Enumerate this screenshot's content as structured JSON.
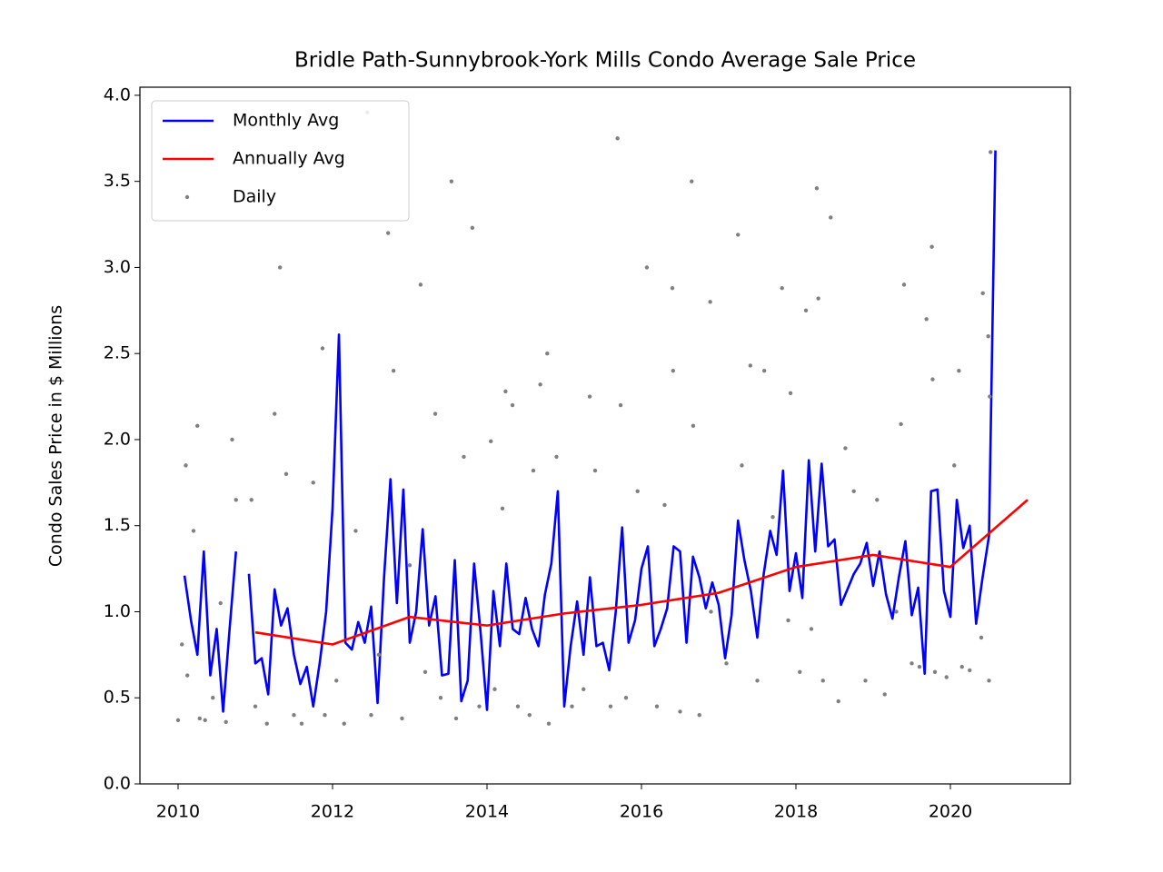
{
  "chart_data": {
    "type": "line",
    "title": "Bridle Path-Sunnybrook-York Mills Condo Average Sale Price",
    "y_label": "Condo Sales Price in $ Millions",
    "xlim": [
      2009.506,
      2021.553
    ],
    "ylim": [
      0,
      4.047
    ],
    "xticks": [
      2010,
      2012,
      2014,
      2016,
      2018,
      2020
    ],
    "yticks": [
      {
        "value": 0,
        "label": "0.0"
      },
      0.5,
      {
        "value": 1,
        "label": "1.0"
      },
      1.5,
      {
        "value": 2,
        "label": "2.0"
      },
      2.5,
      {
        "value": 3,
        "label": "3.0"
      },
      3.5,
      {
        "value": 4,
        "label": "4.0"
      }
    ],
    "legend": "upper left",
    "series": [
      {
        "name": "Monthly Avg",
        "color": "#0000ff",
        "x": [
          2010.083,
          2010.167,
          2010.25,
          2010.333,
          2010.417,
          2010.5,
          2010.583,
          2010.667,
          2010.75,
          2010.833,
          2010.917,
          2011,
          2011.083,
          2011.167,
          2011.25,
          2011.333,
          2011.417,
          2011.5,
          2011.583,
          2011.667,
          2011.75,
          2011.833,
          2011.917,
          2012,
          2012.083,
          2012.167,
          2012.25,
          2012.333,
          2012.417,
          2012.5,
          2012.583,
          2012.667,
          2012.75,
          2012.833,
          2012.917,
          2013,
          2013.083,
          2013.167,
          2013.25,
          2013.333,
          2013.417,
          2013.5,
          2013.583,
          2013.667,
          2013.75,
          2013.833,
          2013.917,
          2014,
          2014.083,
          2014.167,
          2014.25,
          2014.333,
          2014.417,
          2014.5,
          2014.583,
          2014.667,
          2014.75,
          2014.833,
          2014.917,
          2015,
          2015.083,
          2015.167,
          2015.25,
          2015.333,
          2015.417,
          2015.5,
          2015.583,
          2015.667,
          2015.75,
          2015.833,
          2015.917,
          2016,
          2016.083,
          2016.167,
          2016.25,
          2016.333,
          2016.417,
          2016.5,
          2016.583,
          2016.667,
          2016.75,
          2016.833,
          2016.917,
          2017,
          2017.083,
          2017.167,
          2017.25,
          2017.333,
          2017.417,
          2017.5,
          2017.583,
          2017.667,
          2017.75,
          2017.833,
          2017.917,
          2018,
          2018.083,
          2018.167,
          2018.25,
          2018.333,
          2018.417,
          2018.5,
          2018.583,
          2018.667,
          2018.75,
          2018.833,
          2018.917,
          2019,
          2019.083,
          2019.167,
          2019.25,
          2019.333,
          2019.417,
          2019.5,
          2019.583,
          2019.667,
          2019.75,
          2019.833,
          2019.917,
          2020,
          2020.083,
          2020.167,
          2020.25,
          2020.333,
          2020.417,
          2020.5,
          2020.583
        ],
        "values": [
          1.21,
          0.95,
          0.75,
          1.35,
          0.63,
          0.9,
          0.42,
          0.9,
          1.35,
          null,
          1.22,
          0.7,
          0.73,
          0.52,
          1.13,
          0.92,
          1.02,
          0.75,
          0.58,
          0.68,
          0.45,
          0.7,
          1.0,
          1.6,
          2.61,
          0.82,
          0.78,
          0.94,
          0.82,
          1.03,
          0.47,
          1.2,
          1.77,
          1.05,
          1.71,
          0.82,
          1.0,
          1.48,
          0.92,
          1.09,
          0.63,
          0.64,
          1.3,
          0.48,
          0.6,
          1.28,
          0.88,
          0.43,
          1.12,
          0.8,
          1.28,
          0.9,
          0.87,
          1.08,
          0.9,
          0.8,
          1.1,
          1.28,
          1.7,
          0.45,
          0.8,
          1.06,
          0.75,
          1.2,
          0.8,
          0.82,
          0.66,
          1.0,
          1.49,
          0.82,
          0.95,
          1.25,
          1.38,
          0.8,
          0.9,
          1.02,
          1.38,
          1.35,
          0.82,
          1.32,
          1.2,
          1.02,
          1.17,
          1.04,
          0.73,
          0.98,
          1.53,
          1.3,
          1.12,
          0.85,
          1.22,
          1.47,
          1.33,
          1.82,
          1.12,
          1.34,
          1.08,
          1.88,
          1.35,
          1.86,
          1.38,
          1.42,
          1.04,
          1.13,
          1.22,
          1.28,
          1.4,
          1.15,
          1.35,
          1.1,
          0.96,
          1.2,
          1.41,
          0.98,
          1.14,
          0.64,
          1.7,
          1.71,
          1.12,
          0.97,
          1.65,
          1.37,
          1.5,
          0.93,
          1.2,
          1.44,
          3.68
        ]
      },
      {
        "name": "Annually Avg",
        "color": "#ff0000",
        "x": [
          2011,
          2012,
          2013,
          2014,
          2015,
          2016,
          2017,
          2018,
          2019,
          2020,
          2021
        ],
        "values": [
          0.88,
          0.81,
          0.97,
          0.92,
          0.99,
          1.04,
          1.11,
          1.26,
          1.33,
          1.26,
          1.65
        ]
      },
      {
        "name": "Daily",
        "color": "#808080",
        "style": "scatter",
        "x": [
          2011.32,
          2011.87,
          2012.45,
          2012.72,
          2012.79,
          2013.14,
          2013.33,
          2013.54,
          2013.81,
          2014.05,
          2014.24,
          2014.33,
          2014.69,
          2014.78,
          2015.33,
          2015.69,
          2015.73,
          2016.07,
          2016.4,
          2016.41,
          2016.65,
          2016.67,
          2016.89,
          2017.41,
          2017.25,
          2017.59,
          2017.82,
          2017.93,
          2018.13,
          2018.27,
          2018.29,
          2018.45,
          2018.64,
          2019.36,
          2019.4,
          2019.69,
          2019.76,
          2019.77,
          2020.11,
          2020.42,
          2020.49,
          2020.52,
          2020.51,
          2010.0,
          2010.05,
          2010.1,
          2010.12,
          2010.2,
          2010.25,
          2010.28,
          2010.35,
          2010.45,
          2010.55,
          2010.62,
          2010.7,
          2010.75,
          2010.95,
          2011.0,
          2011.15,
          2011.25,
          2011.4,
          2011.5,
          2011.6,
          2011.75,
          2011.9,
          2012.05,
          2012.15,
          2012.3,
          2012.5,
          2012.6,
          2012.9,
          2013.0,
          2013.2,
          2013.4,
          2013.6,
          2013.7,
          2013.9,
          2014.1,
          2014.2,
          2014.4,
          2014.55,
          2014.6,
          2014.8,
          2014.9,
          2015.1,
          2015.25,
          2015.4,
          2015.6,
          2015.8,
          2015.95,
          2016.2,
          2016.3,
          2016.5,
          2016.75,
          2016.9,
          2017.1,
          2017.3,
          2017.5,
          2017.7,
          2017.9,
          2018.05,
          2018.2,
          2018.35,
          2018.55,
          2018.75,
          2018.9,
          2019.05,
          2019.15,
          2019.3,
          2019.5,
          2019.6,
          2019.8,
          2019.95,
          2020.05,
          2020.15,
          2020.25,
          2020.4,
          2020.5
        ],
        "values": [
          3.0,
          2.53,
          3.9,
          3.2,
          2.4,
          2.9,
          2.15,
          3.5,
          3.23,
          1.99,
          2.28,
          2.2,
          2.32,
          2.5,
          2.25,
          3.75,
          2.2,
          3.0,
          2.88,
          2.4,
          3.5,
          2.08,
          2.8,
          2.43,
          3.19,
          2.4,
          2.88,
          2.27,
          2.75,
          3.46,
          2.82,
          3.29,
          1.95,
          2.09,
          2.9,
          2.7,
          3.12,
          2.35,
          2.4,
          2.85,
          2.6,
          3.67,
          2.25,
          0.37,
          0.81,
          1.85,
          0.63,
          1.47,
          2.08,
          0.38,
          0.37,
          0.5,
          1.05,
          0.36,
          2.0,
          1.65,
          1.65,
          0.45,
          0.35,
          2.15,
          1.8,
          0.4,
          0.35,
          1.75,
          0.4,
          0.6,
          0.35,
          1.47,
          0.4,
          0.75,
          0.38,
          1.27,
          0.65,
          0.5,
          0.38,
          1.9,
          0.45,
          0.55,
          1.6,
          0.45,
          0.4,
          1.82,
          0.35,
          1.9,
          0.45,
          0.55,
          1.82,
          0.45,
          0.5,
          1.7,
          0.45,
          1.62,
          0.42,
          0.4,
          1.0,
          0.7,
          1.85,
          0.6,
          1.55,
          0.95,
          0.65,
          0.9,
          0.6,
          0.48,
          1.7,
          0.6,
          1.65,
          0.52,
          1.0,
          0.7,
          0.68,
          0.65,
          0.62,
          1.85,
          0.68,
          0.66,
          0.85,
          0.6
        ]
      }
    ]
  }
}
